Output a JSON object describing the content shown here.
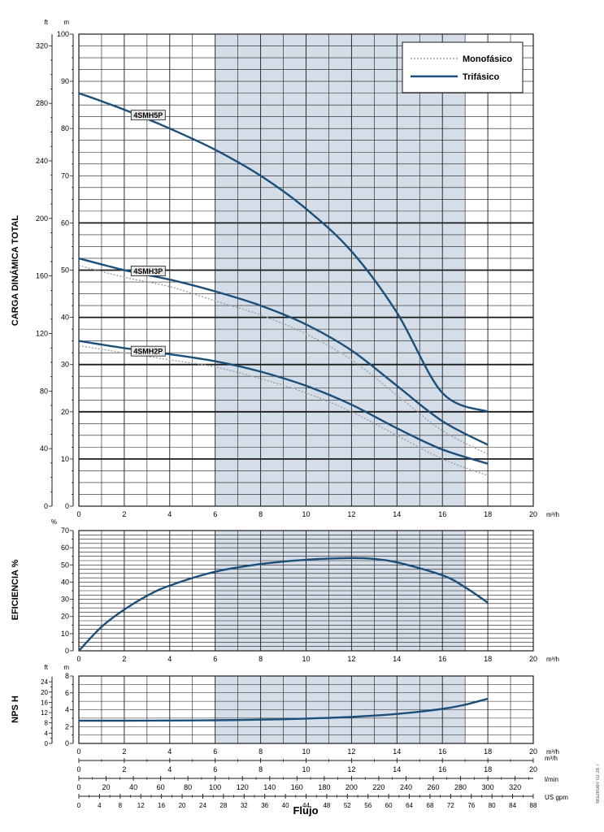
{
  "chart_data": [
    {
      "type": "line",
      "id": "head",
      "ylabel": "CARGA DINÁMICA TOTAL",
      "y_unit_left": "ft",
      "y_unit_right": "m",
      "x_unit": "m³/h",
      "x_ticks": [
        0,
        2,
        4,
        6,
        8,
        10,
        12,
        14,
        16,
        18,
        20
      ],
      "xlim": [
        0,
        20
      ],
      "ylim": [
        0,
        100
      ],
      "y_ticks_m": [
        0,
        10,
        20,
        30,
        40,
        50,
        60,
        70,
        80,
        90,
        100
      ],
      "y_ticks_ft": [
        0,
        40,
        80,
        120,
        160,
        200,
        240,
        280,
        320
      ],
      "y_ticks_ft_labels": [
        "0",
        "40",
        "80",
        "120",
        "160",
        "200",
        "240",
        "280",
        "320"
      ],
      "bold_gridlines_m": [
        10,
        20,
        30,
        40,
        50,
        60
      ],
      "shaded_range": [
        6,
        17
      ],
      "legend": {
        "placement": "top-right",
        "entries": [
          {
            "label": "Monofásico",
            "style": "dotted"
          },
          {
            "label": "Trifásico",
            "style": "solid"
          }
        ]
      },
      "curve_labels": [
        "4SMH5P",
        "4SMH3P",
        "4SMH2P"
      ],
      "series": [
        {
          "label_ref": 0,
          "style": "solid",
          "x": [
            0,
            2,
            4,
            6,
            8,
            10,
            12,
            14,
            16,
            18
          ],
          "y": [
            87.5,
            84,
            80,
            75.5,
            70,
            63,
            54,
            41,
            24,
            20
          ]
        },
        {
          "label_ref": 1,
          "style": "solid",
          "x": [
            0,
            2,
            4,
            6,
            8,
            10,
            12,
            14,
            16,
            18
          ],
          "y": [
            52.5,
            50,
            48,
            45.5,
            42.5,
            38.5,
            33,
            25.5,
            18,
            13
          ]
        },
        {
          "label_ref": 1,
          "style": "dotted",
          "x": [
            0,
            2,
            4,
            6,
            8,
            10,
            12,
            14,
            16,
            18
          ],
          "y": [
            51,
            48.5,
            46.5,
            43.5,
            40.5,
            36.5,
            31,
            23.5,
            16,
            11
          ]
        },
        {
          "label_ref": 2,
          "style": "solid",
          "x": [
            0,
            2,
            4,
            6,
            8,
            10,
            12,
            14,
            16,
            18
          ],
          "y": [
            35,
            33.5,
            32.2,
            30.7,
            28.5,
            25.5,
            21.5,
            16.5,
            12,
            9
          ]
        },
        {
          "label_ref": 2,
          "style": "dotted",
          "x": [
            0,
            2,
            4,
            6,
            8,
            10,
            12,
            14,
            16,
            18
          ],
          "y": [
            34,
            32.5,
            31,
            29.5,
            27,
            24,
            20,
            15,
            10,
            6.5
          ]
        }
      ]
    },
    {
      "type": "line",
      "id": "efficiency",
      "ylabel": "EFICIENCIA %",
      "y_unit_left": "%",
      "x_unit": "m³/h",
      "x_ticks": [
        0,
        2,
        4,
        6,
        8,
        10,
        12,
        14,
        16,
        18,
        20
      ],
      "xlim": [
        0,
        20
      ],
      "ylim": [
        0,
        70
      ],
      "y_ticks": [
        0,
        10,
        20,
        30,
        40,
        50,
        60,
        70
      ],
      "shaded_range": [
        6,
        17
      ],
      "series": [
        {
          "style": "solid",
          "x": [
            0,
            1,
            2,
            3,
            4,
            6,
            8,
            10,
            12,
            13,
            14,
            16,
            17,
            18
          ],
          "y": [
            0,
            14,
            24,
            32,
            38,
            46,
            50.5,
            53,
            54,
            53.5,
            51.5,
            44,
            37,
            28
          ]
        }
      ]
    },
    {
      "type": "line",
      "id": "npsh",
      "ylabel": "NPS H",
      "y_unit_left": "ft",
      "y_unit_right": "m",
      "x_unit": "m³/h",
      "x_ticks": [
        0,
        2,
        4,
        6,
        8,
        10,
        12,
        14,
        16,
        18,
        20
      ],
      "xlim": [
        0,
        20
      ],
      "ylim": [
        0,
        8
      ],
      "y_ticks_m": [
        0,
        2,
        4,
        6,
        8
      ],
      "y_ticks_ft": [
        0,
        4,
        8,
        12,
        16,
        20,
        24
      ],
      "shaded_range": [
        6,
        17
      ],
      "series": [
        {
          "style": "solid",
          "x": [
            0,
            2,
            4,
            6,
            8,
            10,
            12,
            14,
            16,
            17,
            18
          ],
          "y": [
            2.7,
            2.7,
            2.72,
            2.75,
            2.82,
            2.95,
            3.15,
            3.5,
            4.1,
            4.6,
            5.3
          ]
        }
      ]
    }
  ],
  "flow_axes": [
    {
      "unit": "m³/h",
      "max": 20,
      "ticks": [
        "0",
        "2",
        "4",
        "6",
        "8",
        "10",
        "12",
        "14",
        "16",
        "18",
        "20"
      ]
    },
    {
      "unit": "l/min",
      "max": 333.33,
      "ticks": [
        "0",
        "20",
        "40",
        "60",
        "80",
        "100",
        "120",
        "140",
        "160",
        "180",
        "200",
        "220",
        "240",
        "260",
        "280",
        "300",
        "320"
      ]
    },
    {
      "unit": "US gpm",
      "max": 88,
      "ticks": [
        "0",
        "4",
        "8",
        "12",
        "16",
        "20",
        "24",
        "28",
        "32",
        "36",
        "40",
        "44",
        "48",
        "52",
        "56",
        "60",
        "64",
        "68",
        "72",
        "76",
        "80",
        "84",
        "88"
      ]
    }
  ],
  "xlabel": "Flujo",
  "side_code": "MS26S6V 02 28 7",
  "colors": {
    "curve": "#1b4f7a",
    "shade": "#d5dde8",
    "grid": "#1a1a1a",
    "label_box": "#e6e6e6",
    "dotted": "#9aa0a8"
  }
}
